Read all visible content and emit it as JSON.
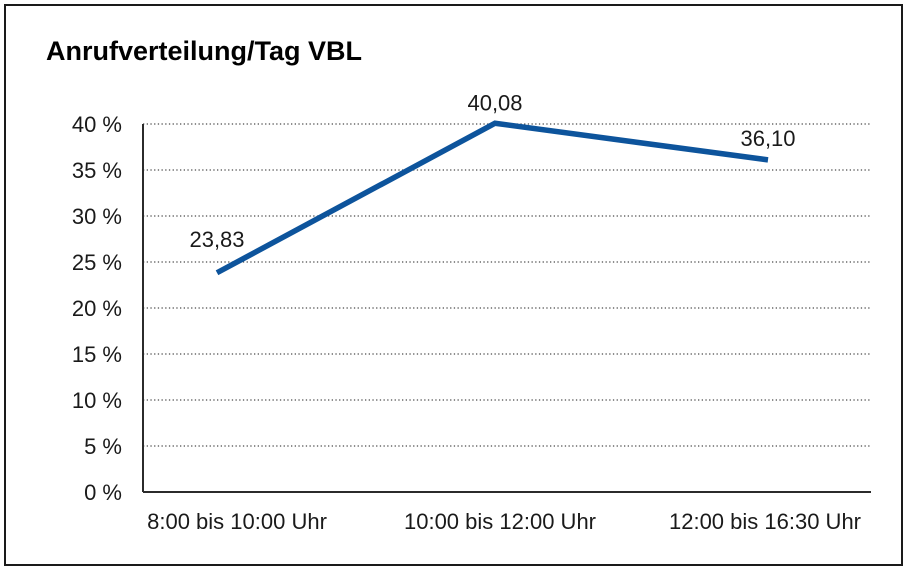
{
  "chart_data": {
    "type": "line",
    "title": "Anrufverteilung/Tag VBL",
    "categories": [
      "8:00 bis 10:00 Uhr",
      "10:00 bis 12:00 Uhr",
      "12:00 bis 16:30 Uhr"
    ],
    "values": [
      23.83,
      40.08,
      36.1
    ],
    "value_labels": [
      "23,83",
      "40,08",
      "36,10"
    ],
    "ylim": [
      0,
      40
    ],
    "ytick_step": 5,
    "ytick_labels": [
      "0 %",
      "5 %",
      "10 %",
      "15 %",
      "20 %",
      "25 %",
      "30 %",
      "35 %",
      "40 %"
    ],
    "xlabel": "",
    "ylabel": "",
    "grid": "horizontal-dotted",
    "legend": "none",
    "line_color": "#0D549C",
    "axis_color": "#2b2b2b",
    "gridline_color": "#4a4a4a"
  }
}
